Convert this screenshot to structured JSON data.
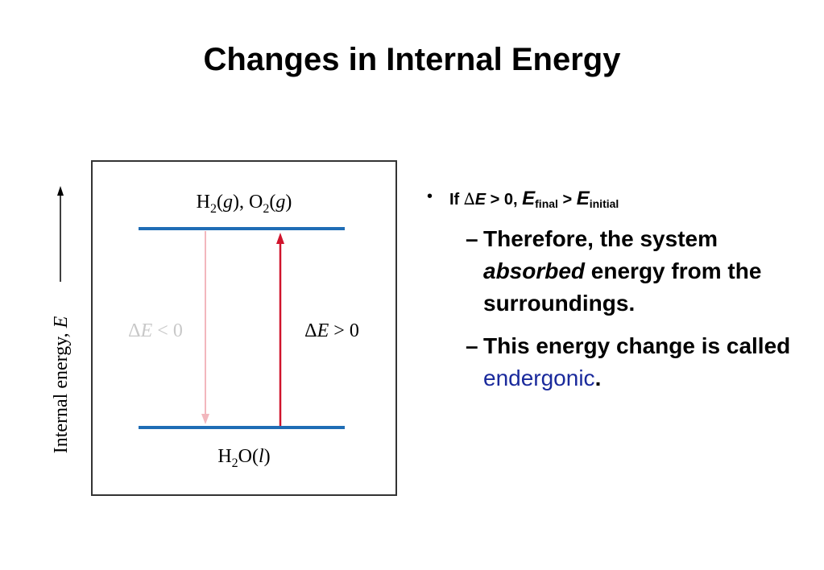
{
  "title": "Changes in Internal Energy",
  "diagram": {
    "axis_label": [
      "Internal energy, ",
      "E"
    ],
    "top_state": [
      "H",
      "2",
      "(",
      "g",
      "), O",
      "2",
      "(",
      "g",
      ")"
    ],
    "bottom_state": [
      "H",
      "2",
      "O(",
      "l",
      ")"
    ],
    "release_label": [
      "Δ",
      "E",
      " < 0"
    ],
    "absorb_label": [
      "Δ",
      "E",
      " > 0"
    ]
  },
  "bullets": [
    {
      "marker": "•",
      "parts": [
        "If ",
        "∆",
        "E",
        " > 0, ",
        "E",
        "final",
        " > ",
        "E",
        "initial"
      ]
    },
    {
      "marker": "–",
      "parts": [
        "Therefore, the system ",
        "absorbed",
        " energy from the surroundings."
      ]
    },
    {
      "marker": "–",
      "parts": [
        "This energy change is called ",
        "endergonic",
        "."
      ]
    }
  ]
}
